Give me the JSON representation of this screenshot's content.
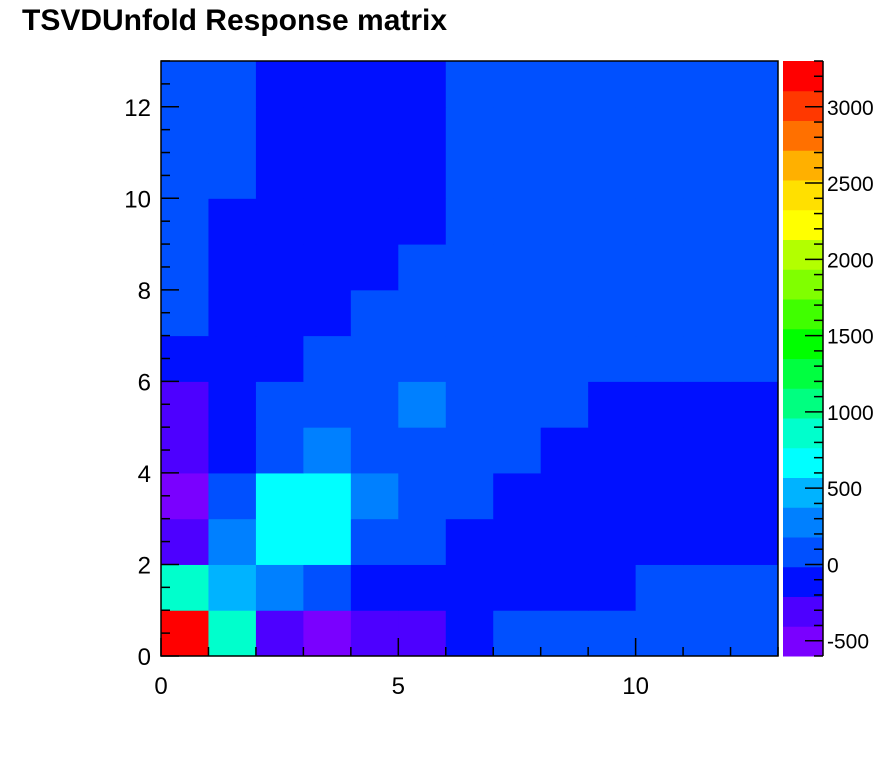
{
  "chart_data": {
    "type": "heatmap",
    "title": "TSVDUnfold Response matrix",
    "xlabel": "",
    "ylabel": "",
    "xlim": [
      0,
      13
    ],
    "ylim": [
      0,
      13
    ],
    "zlim": [
      -600,
      3300
    ],
    "x_ticks": [
      0,
      5,
      10
    ],
    "y_ticks": [
      0,
      2,
      4,
      6,
      8,
      10,
      12
    ],
    "colorbar_ticks": [
      -500,
      0,
      500,
      1000,
      1500,
      2000,
      2500,
      3000
    ],
    "colorbar_palette": [
      "#7a00ff",
      "#4d00ff",
      "#0010ff",
      "#0050ff",
      "#0080ff",
      "#00b3ff",
      "#00ffff",
      "#00ffcc",
      "#00ff80",
      "#00ff40",
      "#00ff00",
      "#40ff00",
      "#80ff00",
      "#b3ff00",
      "#ffff00",
      "#ffe000",
      "#ffb000",
      "#ff7000",
      "#ff3800",
      "#ff0000"
    ],
    "matrix": [
      [
        3250,
        800,
        -300,
        -500,
        -350,
        -350,
        -100,
        100,
        100,
        100,
        100,
        100,
        100
      ],
      [
        900,
        500,
        350,
        50,
        -100,
        -100,
        -100,
        -100,
        -100,
        -100,
        100,
        100,
        100
      ],
      [
        -350,
        300,
        600,
        600,
        50,
        50,
        -100,
        -100,
        -100,
        -100,
        -100,
        -100,
        -100
      ],
      [
        -550,
        100,
        600,
        600,
        300,
        100,
        100,
        -100,
        -100,
        -100,
        -100,
        -100,
        -100
      ],
      [
        -350,
        -100,
        100,
        300,
        100,
        100,
        100,
        100,
        -100,
        -100,
        -100,
        -100,
        -100
      ],
      [
        -350,
        -100,
        100,
        100,
        100,
        300,
        100,
        100,
        100,
        -100,
        -100,
        -100,
        -100
      ],
      [
        -200,
        -200,
        -200,
        100,
        100,
        100,
        100,
        100,
        100,
        100,
        100,
        100,
        100
      ],
      [
        100,
        -100,
        -100,
        -100,
        100,
        100,
        100,
        100,
        100,
        100,
        100,
        100,
        100
      ],
      [
        100,
        -100,
        -100,
        -100,
        -100,
        100,
        100,
        100,
        100,
        100,
        100,
        100,
        100
      ],
      [
        100,
        -100,
        -100,
        -100,
        -100,
        -100,
        100,
        100,
        100,
        100,
        100,
        100,
        100
      ],
      [
        100,
        100,
        -100,
        -100,
        -100,
        -100,
        100,
        100,
        100,
        100,
        100,
        100,
        100
      ],
      [
        100,
        100,
        -100,
        -100,
        -100,
        -100,
        100,
        100,
        100,
        100,
        100,
        100,
        100
      ],
      [
        100,
        100,
        -100,
        -100,
        -100,
        -100,
        100,
        100,
        100,
        100,
        100,
        100,
        100
      ]
    ]
  }
}
